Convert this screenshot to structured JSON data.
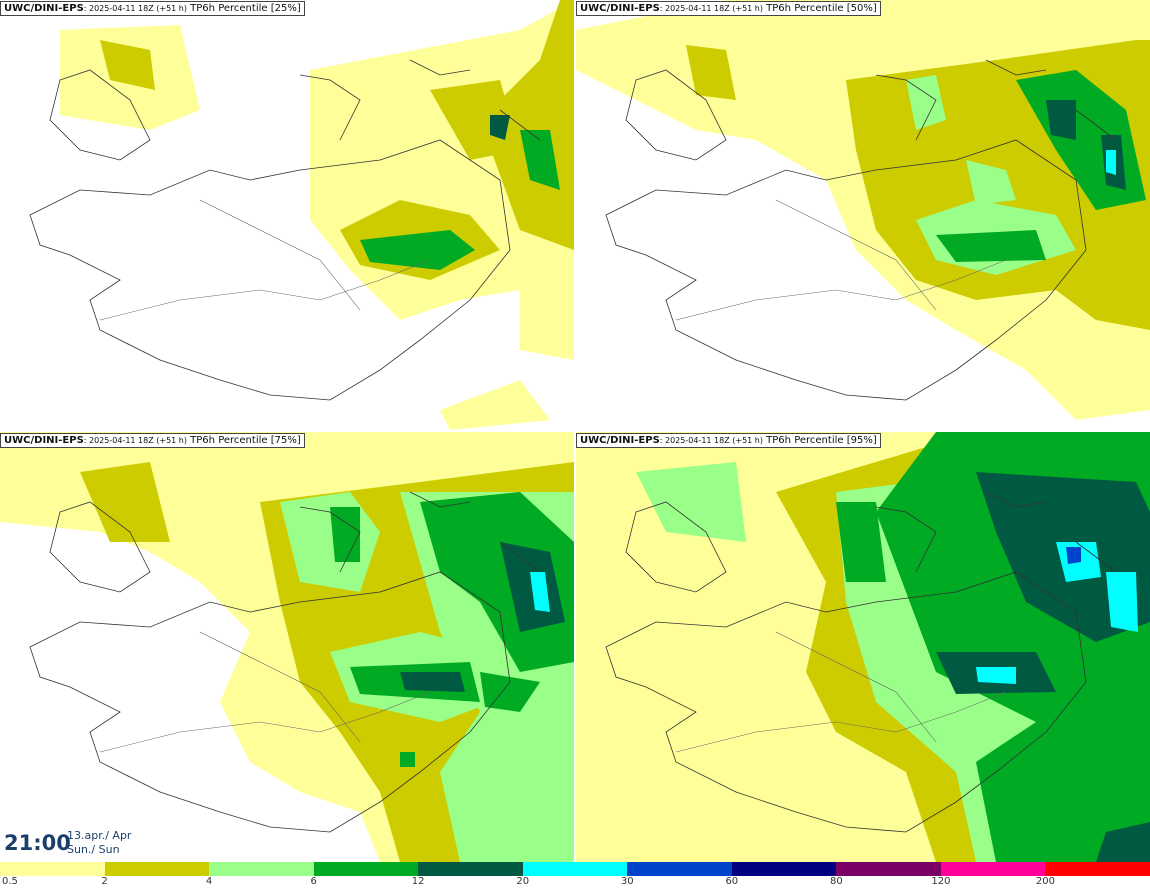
{
  "panels": [
    {
      "model": "UWC/DINI-EPS",
      "run": ": 2025-04-11 18Z (+51 h)",
      "field": "TP6h Percentile [25%]",
      "percentile": 25
    },
    {
      "model": "UWC/DINI-EPS",
      "run": ": 2025-04-11 18Z (+51 h)",
      "field": "TP6h Percentile [50%]",
      "percentile": 50
    },
    {
      "model": "UWC/DINI-EPS",
      "run": ": 2025-04-11 18Z (+51 h)",
      "field": "TP6h Percentile [75%]",
      "percentile": 75
    },
    {
      "model": "UWC/DINI-EPS",
      "run": ": 2025-04-11 18Z (+51 h)",
      "field": "TP6h Percentile [95%]",
      "percentile": 95
    }
  ],
  "valid_time": {
    "time": "21:00",
    "date_line1": "13.apr./ Apr",
    "date_line2": "Sun./ Sun"
  },
  "colorbar": {
    "ticks": [
      "0.5",
      "2",
      "4",
      "6",
      "12",
      "20",
      "30",
      "60",
      "80",
      "120",
      "200"
    ],
    "colors": [
      "#ffff99",
      "#cccc00",
      "#99ff88",
      "#00aa22",
      "#005a42",
      "#00ffff",
      "#0044cc",
      "#000080",
      "#7a0066",
      "#ff0099",
      "#ff0000"
    ]
  }
}
